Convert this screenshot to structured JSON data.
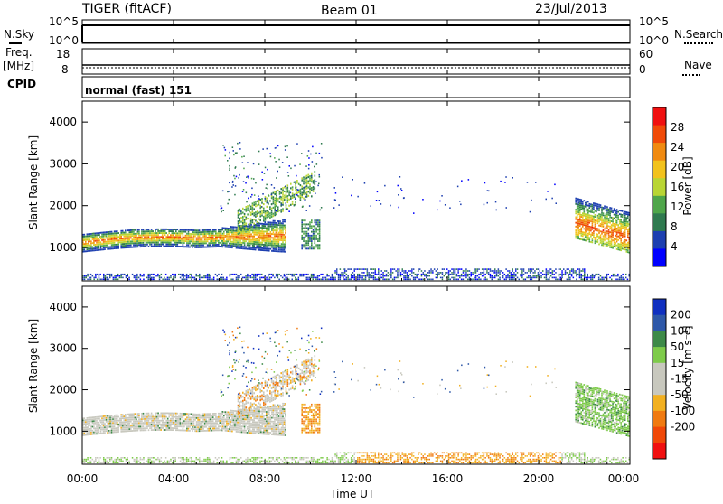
{
  "header": {
    "radar": "TIGER (fitACF)",
    "beam": "Beam 01",
    "date": "23/Jul/2013"
  },
  "top_panels": {
    "nsky_label": "N.Sky",
    "nsky_ticks": [
      "10^5",
      "10^0"
    ],
    "nsearch_label": "N.Search",
    "nsearch_ticks": [
      "10^5",
      "10^0"
    ],
    "freq_label_1": "Freq.",
    "freq_label_2": "[MHz]",
    "freq_ticks": [
      "18",
      "8"
    ],
    "nave_label": "Nave",
    "nave_ticks": [
      "60",
      "0"
    ],
    "cpid_label": "CPID",
    "cpid_text": "normal (fast) 151"
  },
  "colors": {
    "power_scale": [
      "#0000ff",
      "#1d3fb0",
      "#2f7a4f",
      "#4fa64a",
      "#b9d534",
      "#f2c21c",
      "#f08a10",
      "#f04a08",
      "#f01010"
    ],
    "velocity_scale": [
      "#1030c0",
      "#2e58a8",
      "#3d8a48",
      "#7ecb4a",
      "#c8c8be",
      "#c8c8be",
      "#f2b020",
      "#f07a10",
      "#f04808",
      "#f01010"
    ],
    "ground_scatter": "#c8c8be"
  },
  "chart_data": [
    {
      "type": "heatmap",
      "name": "power",
      "ylabel": "Slant Range [km]",
      "yticks": [
        "1000",
        "2000",
        "3000",
        "4000"
      ],
      "ylim": [
        200,
        4500
      ],
      "xlim": [
        0,
        24
      ],
      "colorbar": {
        "label": "Power [dB]",
        "ticks": [
          "4",
          "8",
          "12",
          "16",
          "20",
          "24",
          "28"
        ],
        "range": [
          0,
          32
        ]
      },
      "features": [
        {
          "time_h": [
            0.0,
            8.8
          ],
          "range_km": [
            850,
            1450
          ],
          "peak_dB": 28,
          "desc": "main echo band rising with time"
        },
        {
          "time_h": [
            7.0,
            10.0
          ],
          "range_km": [
            1200,
            3500
          ],
          "peak_dB": 16
        },
        {
          "time_h": [
            21.8,
            24.0
          ],
          "range_km": [
            900,
            2400
          ],
          "peak_dB": 30
        },
        {
          "time_h": [
            0.0,
            24.0
          ],
          "range_km": [
            200,
            450
          ],
          "peak_dB": 8
        }
      ]
    },
    {
      "type": "heatmap",
      "name": "velocity",
      "ylabel": "Slant Range [km]",
      "yticks": [
        "1000",
        "2000",
        "3000",
        "4000"
      ],
      "ylim": [
        200,
        4500
      ],
      "xlim": [
        0,
        24
      ],
      "xlabel": "Time UT",
      "xticks": [
        "00:00",
        "04:00",
        "08:00",
        "12:00",
        "16:00",
        "20:00",
        "00:00"
      ],
      "colorbar": {
        "label": "Velocity [m s⁻¹]",
        "ticks": [
          "200",
          "100",
          "50",
          "15",
          "-15",
          "-50",
          "-100",
          "-200"
        ],
        "range": [
          -250,
          250
        ]
      }
    }
  ]
}
